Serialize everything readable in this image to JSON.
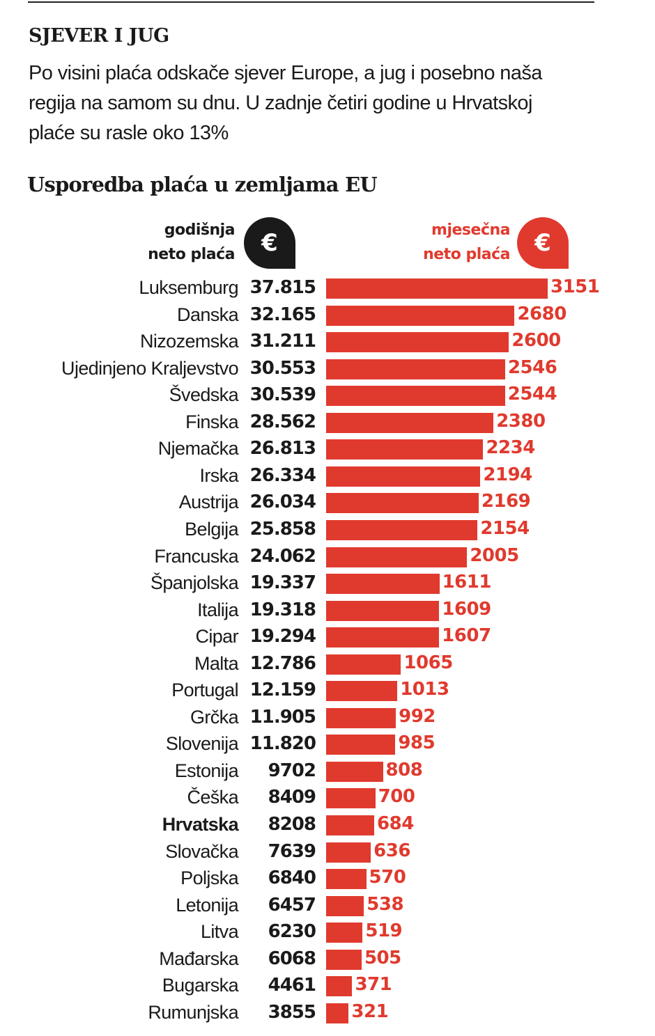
{
  "kicker": "SJEVER I JUG",
  "lede": "Po visini plaća odskače sjever Europe, a jug i posebno naša regija na samom su dnu. U zadnje četiri godine u Hrvatskoj plaće su rasle oko 13%",
  "chart_data": {
    "type": "bar",
    "orientation": "horizontal",
    "title": "Usporedba plaća u zemljama EU",
    "annual_header": "godišnja neto plaća",
    "monthly_header": "mjesečna neto plaća",
    "currency_symbol": "€",
    "highlight": "Hrvatska",
    "colors": {
      "bar": "#e03a2e",
      "annual_text": "#1a1a1a"
    },
    "categories": [
      "Luksemburg",
      "Danska",
      "Nizozemska",
      "Ujedinjeno Kraljevstvo",
      "Švedska",
      "Finska",
      "Njemačka",
      "Irska",
      "Austrija",
      "Belgija",
      "Francuska",
      "Španjolska",
      "Italija",
      "Cipar",
      "Malta",
      "Portugal",
      "Grčka",
      "Slovenija",
      "Estonija",
      "Češka",
      "Hrvatska",
      "Slovačka",
      "Poljska",
      "Letonija",
      "Litva",
      "Mađarska",
      "Bugarska",
      "Rumunjska"
    ],
    "annual_labels": [
      "37.815",
      "32.165",
      "31.211",
      "30.553",
      "30.539",
      "28.562",
      "26.813",
      "26.334",
      "26.034",
      "25.858",
      "24.062",
      "19.337",
      "19.318",
      "19.294",
      "12.786",
      "12.159",
      "11.905",
      "11.820",
      "9702",
      "8409",
      "8208",
      "7639",
      "6840",
      "6457",
      "6230",
      "6068",
      "4461",
      "3855"
    ],
    "monthly_values": [
      3151,
      2680,
      2600,
      2546,
      2544,
      2380,
      2234,
      2194,
      2169,
      2154,
      2005,
      1611,
      1609,
      1607,
      1065,
      1013,
      992,
      985,
      808,
      700,
      684,
      636,
      570,
      538,
      519,
      505,
      371,
      321
    ]
  }
}
